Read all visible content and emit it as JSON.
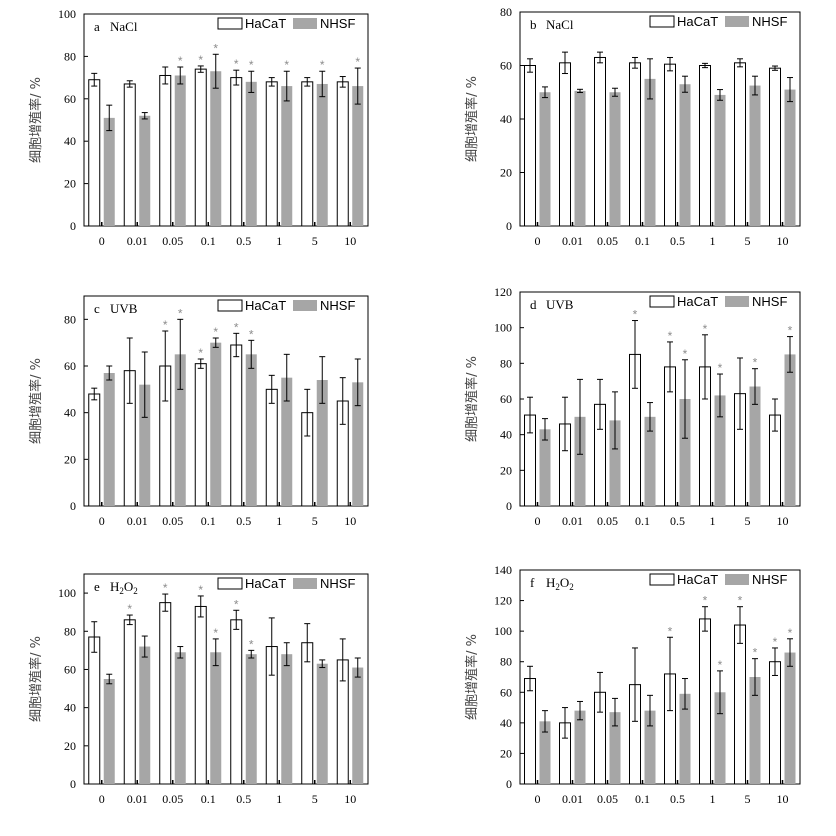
{
  "figure": {
    "colors": {
      "hacat_fill": "#ffffff",
      "nhsf_fill": "#a6a6a6",
      "axis": "#000000",
      "star": "#8c8c8c"
    }
  },
  "chart_data": [
    {
      "type": "bar",
      "panel": "a",
      "title": "NaCl",
      "ylabel": "细胞增殖率/ %",
      "xlabel": "",
      "ylim": [
        0,
        100
      ],
      "yticks": [
        0,
        20,
        40,
        60,
        80,
        100
      ],
      "categories": [
        "0",
        "0.01",
        "0.05",
        "0.1",
        "0.5",
        "1",
        "5",
        "10"
      ],
      "legend_position": "top-right",
      "grid": false,
      "series": [
        {
          "name": "HaCaT",
          "values": [
            69,
            67,
            71,
            74,
            70,
            68,
            68,
            68
          ],
          "errors": [
            3,
            1.5,
            4,
            1.5,
            3.5,
            2,
            2,
            2.5
          ],
          "significant": [
            false,
            false,
            false,
            true,
            true,
            false,
            false,
            false
          ]
        },
        {
          "name": "NHSF",
          "values": [
            51,
            52,
            71,
            73,
            68,
            66,
            67,
            66
          ],
          "errors": [
            6,
            1.5,
            4,
            8,
            5,
            7,
            6,
            8.5
          ],
          "significant": [
            false,
            false,
            true,
            true,
            true,
            true,
            true,
            true
          ]
        }
      ]
    },
    {
      "type": "bar",
      "panel": "b",
      "title": "NaCl",
      "ylabel": "细胞增殖率/ %",
      "xlabel": "",
      "ylim": [
        0,
        80
      ],
      "yticks": [
        0,
        20,
        40,
        60,
        80
      ],
      "categories": [
        "0",
        "0.01",
        "0.05",
        "0.1",
        "0.5",
        "1",
        "5",
        "10"
      ],
      "legend_position": "top-right",
      "grid": false,
      "series": [
        {
          "name": "HaCaT",
          "values": [
            60,
            61,
            63,
            61,
            60.5,
            60,
            61,
            59
          ],
          "errors": [
            2.5,
            4,
            2,
            2,
            2.5,
            0.8,
            1.5,
            0.8
          ],
          "significant": [
            false,
            false,
            false,
            false,
            false,
            false,
            false,
            false
          ]
        },
        {
          "name": "NHSF",
          "values": [
            50,
            50.5,
            50,
            55,
            53,
            49,
            52.5,
            51
          ],
          "errors": [
            2,
            0.6,
            1.5,
            7.5,
            3,
            2,
            3.5,
            4.5
          ],
          "significant": [
            false,
            false,
            false,
            false,
            false,
            false,
            false,
            false
          ]
        }
      ]
    },
    {
      "type": "bar",
      "panel": "c",
      "title": "UVB",
      "ylabel": "细胞增殖率/ %",
      "xlabel": "",
      "ylim": [
        0,
        90
      ],
      "yticks": [
        0,
        20,
        40,
        60,
        80
      ],
      "categories": [
        "0",
        "0.01",
        "0.05",
        "0.1",
        "0.5",
        "1",
        "5",
        "10"
      ],
      "legend_position": "top-right",
      "grid": false,
      "series": [
        {
          "name": "HaCaT",
          "values": [
            48,
            58,
            60,
            61,
            69,
            50,
            40,
            45
          ],
          "errors": [
            2.5,
            14,
            15,
            2,
            5,
            6,
            10,
            10
          ],
          "significant": [
            false,
            false,
            true,
            true,
            true,
            false,
            false,
            false
          ]
        },
        {
          "name": "NHSF",
          "values": [
            57,
            52,
            65,
            70,
            65,
            55,
            54,
            53
          ],
          "errors": [
            3,
            14,
            15,
            2,
            6,
            10,
            10,
            10
          ],
          "significant": [
            false,
            false,
            true,
            true,
            true,
            false,
            false,
            false
          ]
        }
      ]
    },
    {
      "type": "bar",
      "panel": "d",
      "title": "UVB",
      "ylabel": "细胞增殖率/ %",
      "xlabel": "",
      "ylim": [
        0,
        120
      ],
      "yticks": [
        0,
        20,
        40,
        60,
        80,
        100,
        120
      ],
      "categories": [
        "0",
        "0.01",
        "0.05",
        "0.1",
        "0.5",
        "1",
        "5",
        "10"
      ],
      "legend_position": "top-right",
      "grid": false,
      "series": [
        {
          "name": "HaCaT",
          "values": [
            51,
            46,
            57,
            85,
            78,
            78,
            63,
            51
          ],
          "errors": [
            10,
            15,
            14,
            19,
            14,
            18,
            20,
            9
          ],
          "significant": [
            false,
            false,
            false,
            true,
            true,
            true,
            false,
            false
          ]
        },
        {
          "name": "NHSF",
          "values": [
            43,
            50,
            48,
            50,
            60,
            62,
            67,
            85
          ],
          "errors": [
            6,
            21,
            16,
            8,
            22,
            12,
            10,
            10
          ],
          "significant": [
            false,
            false,
            false,
            false,
            true,
            true,
            true,
            true
          ]
        }
      ]
    },
    {
      "type": "bar",
      "panel": "e",
      "title": "H2O2",
      "ylabel": "细胞增殖率/ %",
      "xlabel": "",
      "ylim": [
        0,
        110
      ],
      "yticks": [
        0,
        20,
        40,
        60,
        80,
        100
      ],
      "categories": [
        "0",
        "0.01",
        "0.05",
        "0.1",
        "0.5",
        "1",
        "5",
        "10"
      ],
      "legend_position": "top-right",
      "grid": false,
      "series": [
        {
          "name": "HaCaT",
          "values": [
            77,
            86,
            95,
            93,
            86,
            72,
            74,
            65
          ],
          "errors": [
            8,
            2.5,
            4.5,
            5.5,
            5,
            15,
            10,
            11
          ],
          "significant": [
            false,
            true,
            true,
            true,
            true,
            false,
            false,
            false
          ]
        },
        {
          "name": "NHSF",
          "values": [
            55,
            72,
            69,
            69,
            68,
            68,
            63,
            61
          ],
          "errors": [
            2.5,
            5.5,
            3,
            7,
            2,
            6,
            2,
            5
          ],
          "significant": [
            false,
            false,
            false,
            true,
            true,
            false,
            false,
            false
          ]
        }
      ]
    },
    {
      "type": "bar",
      "panel": "f",
      "title": "H2O2",
      "ylabel": "细胞增殖率/ %",
      "xlabel": "",
      "ylim": [
        0,
        140
      ],
      "yticks": [
        0,
        20,
        40,
        60,
        80,
        100,
        120,
        140
      ],
      "categories": [
        "0",
        "0.01",
        "0.05",
        "0.1",
        "0.5",
        "1",
        "5",
        "10"
      ],
      "legend_position": "top-right",
      "grid": false,
      "series": [
        {
          "name": "HaCaT",
          "values": [
            69,
            40,
            60,
            65,
            72,
            108,
            104,
            80
          ],
          "errors": [
            8,
            10,
            13,
            24,
            24,
            8,
            12,
            9
          ],
          "significant": [
            false,
            false,
            false,
            false,
            true,
            true,
            true,
            true
          ]
        },
        {
          "name": "NHSF",
          "values": [
            41,
            48,
            47,
            48,
            59,
            60,
            70,
            86
          ],
          "errors": [
            7,
            6,
            9,
            10,
            10,
            14,
            12,
            9
          ],
          "significant": [
            false,
            false,
            false,
            false,
            false,
            true,
            true,
            true
          ]
        }
      ]
    }
  ]
}
